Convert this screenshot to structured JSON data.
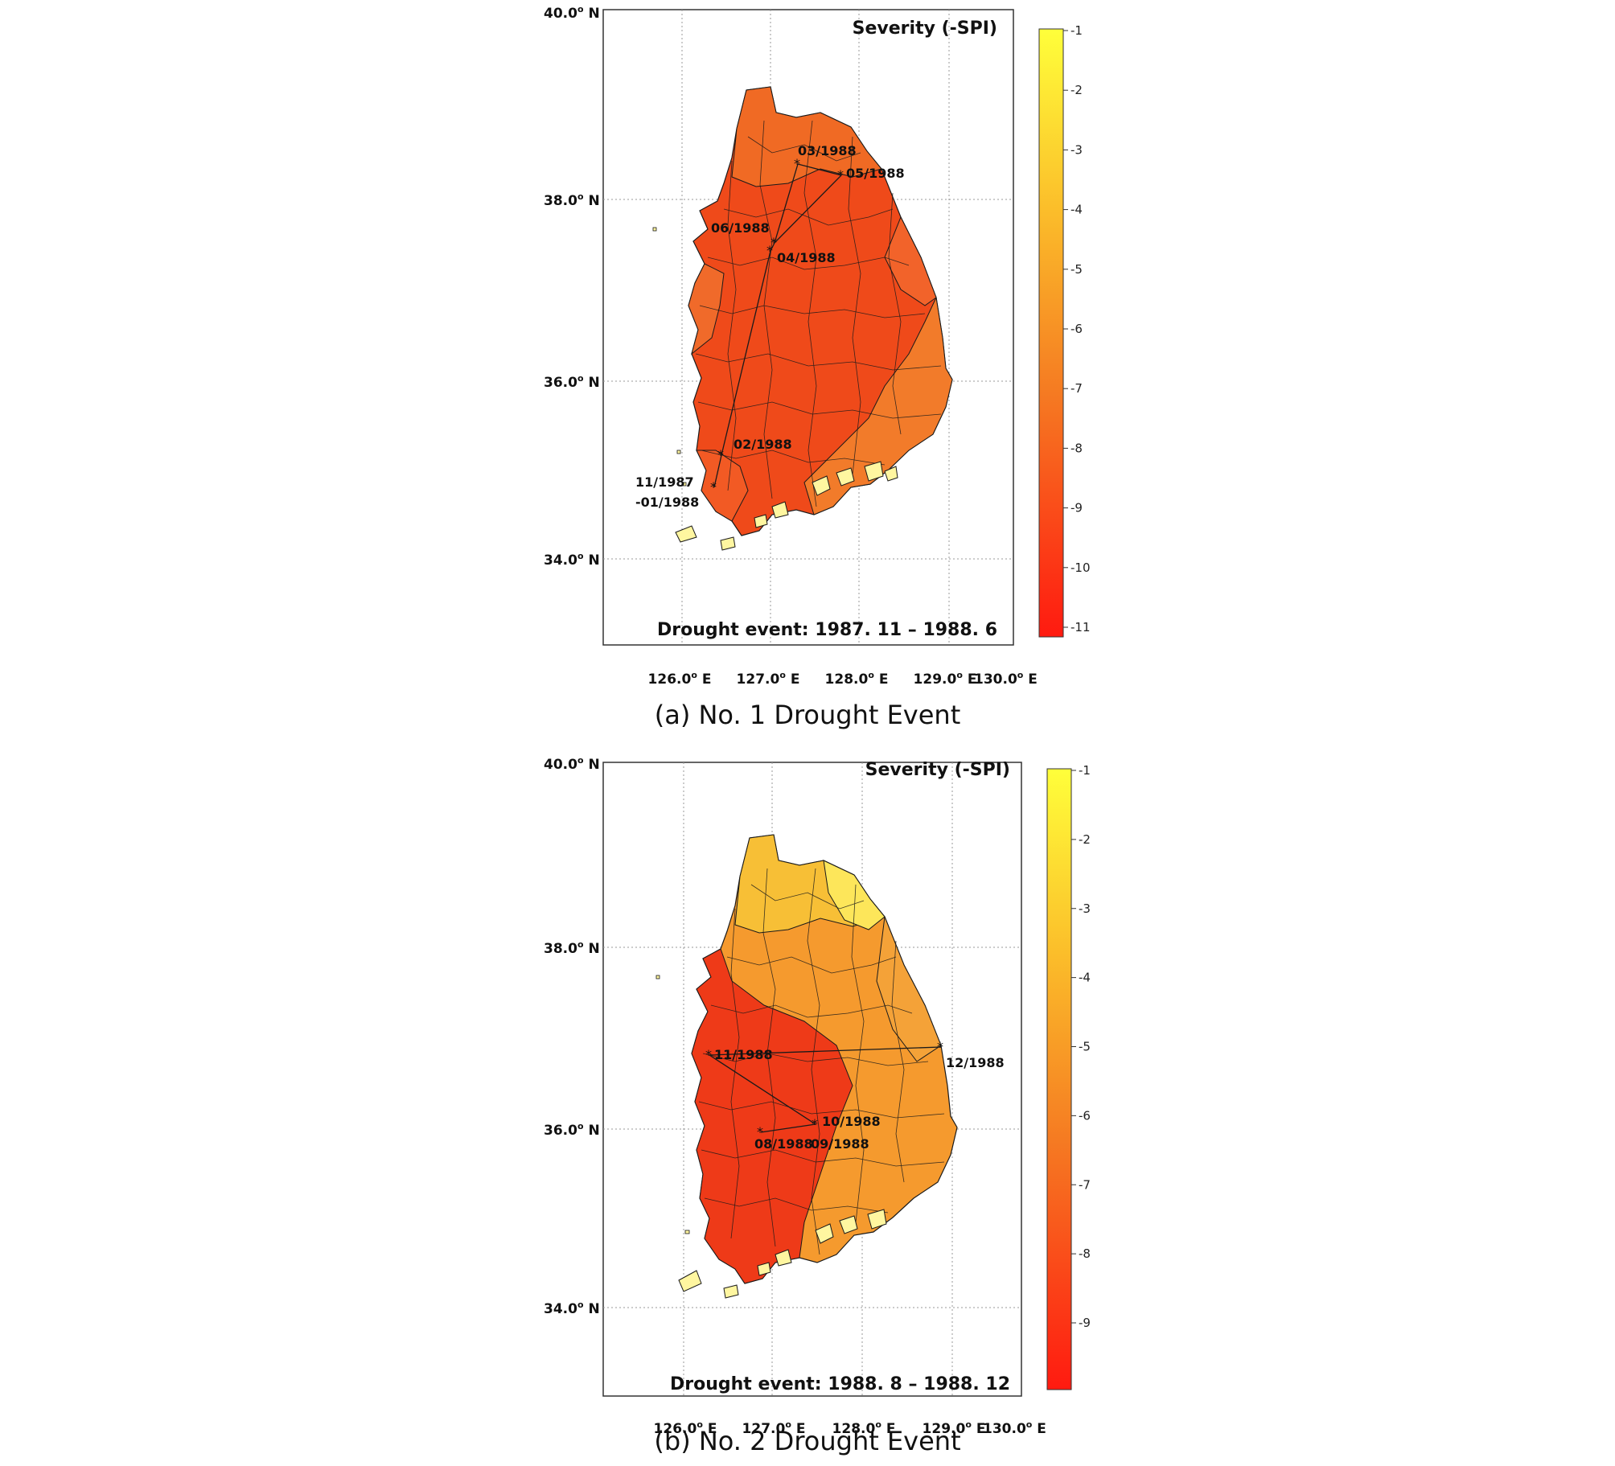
{
  "panels": [
    {
      "id": "a",
      "caption": "(a) No. 1 Drought Event",
      "colorbar_title": "Severity (-SPI)",
      "event_text": "Drought event: 1987. 11 – 1988. 6",
      "lat_labels": [
        "40.0",
        "38.0",
        "36.0",
        "34.0"
      ],
      "lon_labels": [
        "126.0",
        "127.0",
        "128.0",
        "129.0",
        "130.0"
      ],
      "lat_suffix": "N",
      "lon_suffix": "E",
      "colorbar_ticks": [
        "-1",
        "-2",
        "-3",
        "-4",
        "-5",
        "-6",
        "-7",
        "-8",
        "-9",
        "-10",
        "-11"
      ],
      "route_labels": [
        "03/1988",
        "05/1988",
        "06/1988",
        "04/1988",
        "02/1988",
        "11/1987",
        "-01/1988"
      ],
      "colors": {
        "land": "#ef4a1a",
        "north": "#f06a24",
        "south": "#f27b2a",
        "island": "#fff6a0"
      }
    },
    {
      "id": "b",
      "caption": "(b) No. 2 Drought Event",
      "colorbar_title": "Severity (-SPI)",
      "event_text": "Drought event: 1988. 8 – 1988. 12",
      "lat_labels": [
        "40.0",
        "38.0",
        "36.0",
        "34.0"
      ],
      "lon_labels": [
        "126.0",
        "127.0",
        "128.0",
        "129.0",
        "130.0"
      ],
      "lat_suffix": "N",
      "lon_suffix": "E",
      "colorbar_ticks": [
        "-1",
        "-2",
        "-3",
        "-4",
        "-5",
        "-6",
        "-7",
        "-8",
        "-9"
      ],
      "route_labels": [
        "11/1988",
        "12/1988",
        "10/1988",
        "08/1988",
        "09/1988"
      ],
      "colors": {
        "land": "#f59a2e",
        "north": "#f7c135",
        "west": "#ee3a18",
        "island": "#fff6a0"
      }
    }
  ]
}
